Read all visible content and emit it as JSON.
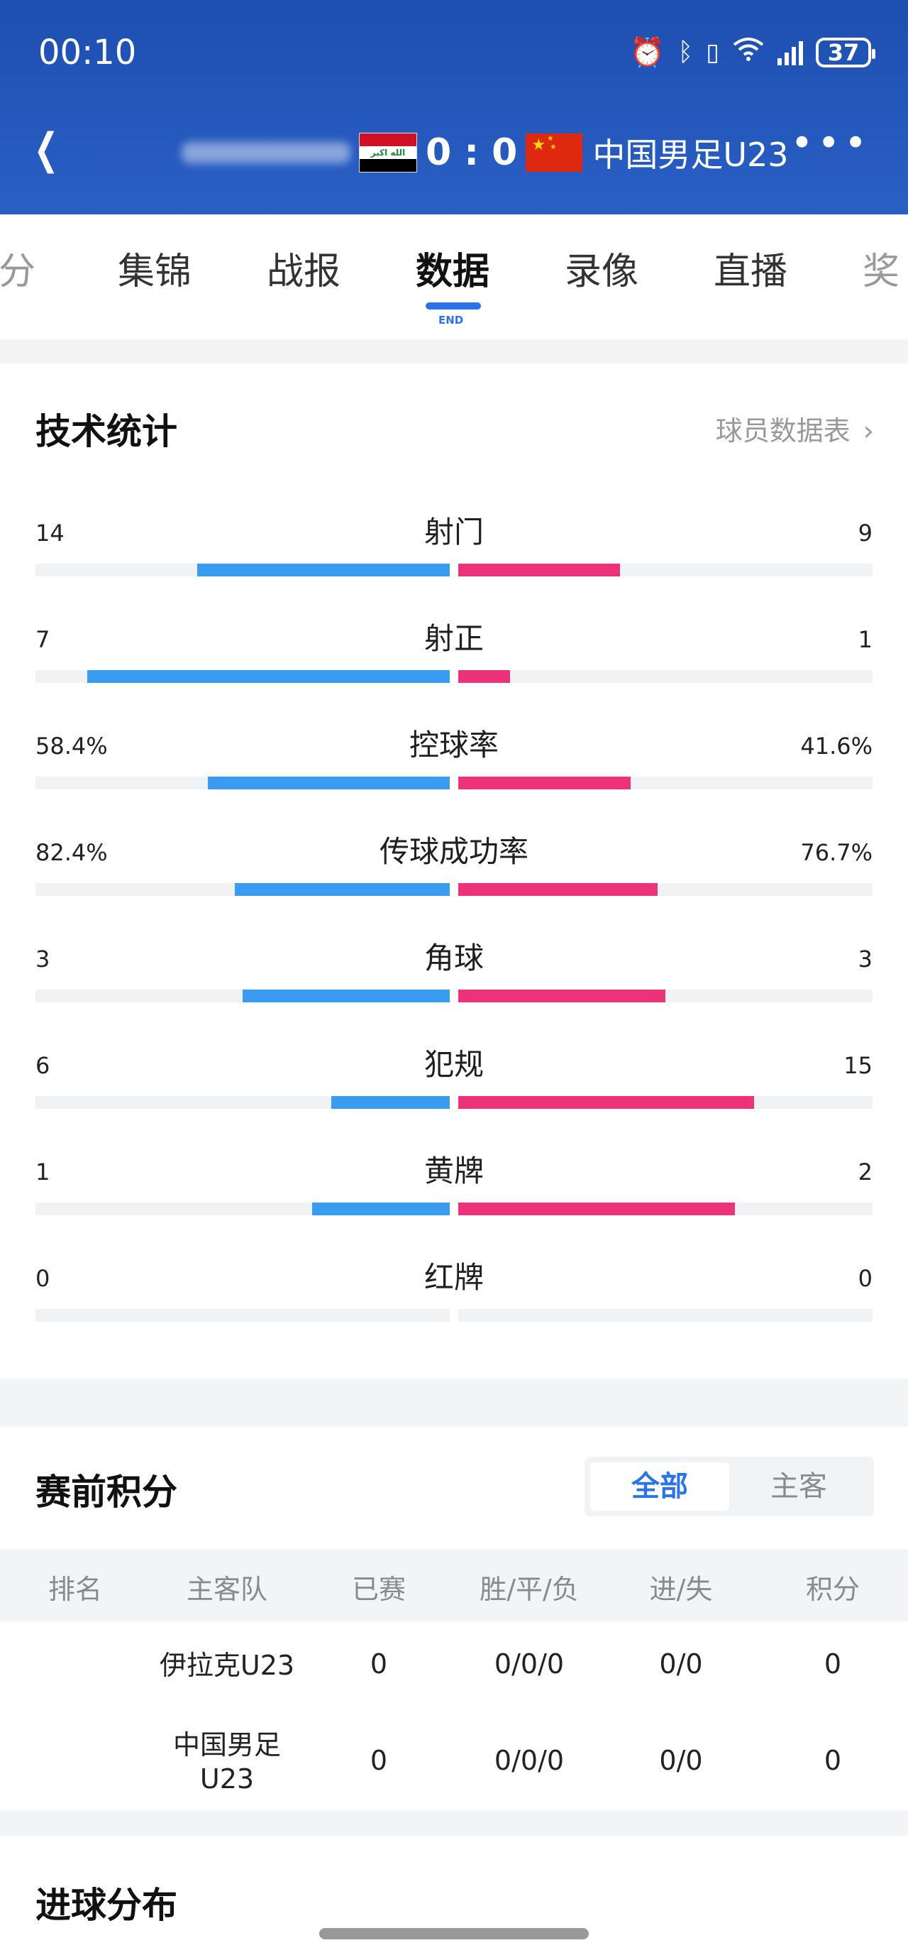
{
  "status_bar": {
    "time": "00:10",
    "battery": "37"
  },
  "match": {
    "score": "0 : 0",
    "away_team": "中国男足U23"
  },
  "tabs": [
    {
      "label": "分"
    },
    {
      "label": "集锦"
    },
    {
      "label": "战报"
    },
    {
      "label": "数据",
      "active": true,
      "badge": "END"
    },
    {
      "label": "录像"
    },
    {
      "label": "直播"
    },
    {
      "label": "奖"
    }
  ],
  "stats": {
    "title": "技术统计",
    "player_link": "球员数据表",
    "rows": [
      {
        "label": "射门",
        "home": "14",
        "away": "9",
        "home_share": 0.61,
        "away_share": 0.39
      },
      {
        "label": "射正",
        "home": "7",
        "away": "1",
        "home_share": 0.875,
        "away_share": 0.125
      },
      {
        "label": "控球率",
        "home": "58.4%",
        "away": "41.6%",
        "home_share": 0.584,
        "away_share": 0.416
      },
      {
        "label": "传球成功率",
        "home": "82.4%",
        "away": "76.7%",
        "home_share": 0.518,
        "away_share": 0.482
      },
      {
        "label": "角球",
        "home": "3",
        "away": "3",
        "home_share": 0.5,
        "away_share": 0.5
      },
      {
        "label": "犯规",
        "home": "6",
        "away": "15",
        "home_share": 0.286,
        "away_share": 0.714
      },
      {
        "label": "黄牌",
        "home": "1",
        "away": "2",
        "home_share": 0.333,
        "away_share": 0.667
      },
      {
        "label": "红牌",
        "home": "0",
        "away": "0",
        "home_share": 0,
        "away_share": 0
      }
    ]
  },
  "standings": {
    "title": "赛前积分",
    "toggle": [
      "全部",
      "主客"
    ],
    "columns": [
      "排名",
      "主客队",
      "已赛",
      "胜/平/负",
      "进/失",
      "积分"
    ],
    "rows": [
      {
        "rank": "",
        "team": "伊拉克U23",
        "played": "0",
        "wdl": "0/0/0",
        "goals": "0/0",
        "points": "0"
      },
      {
        "rank": "",
        "team": "中国男足U23",
        "played": "0",
        "wdl": "0/0/0",
        "goals": "0/0",
        "points": "0"
      }
    ]
  },
  "goals_section": {
    "title": "进球分布"
  },
  "colors": {
    "header": "#1d4fb0",
    "home_bar": "#3a9cf0",
    "away_bar": "#ec3278",
    "accent": "#2a73e8"
  }
}
